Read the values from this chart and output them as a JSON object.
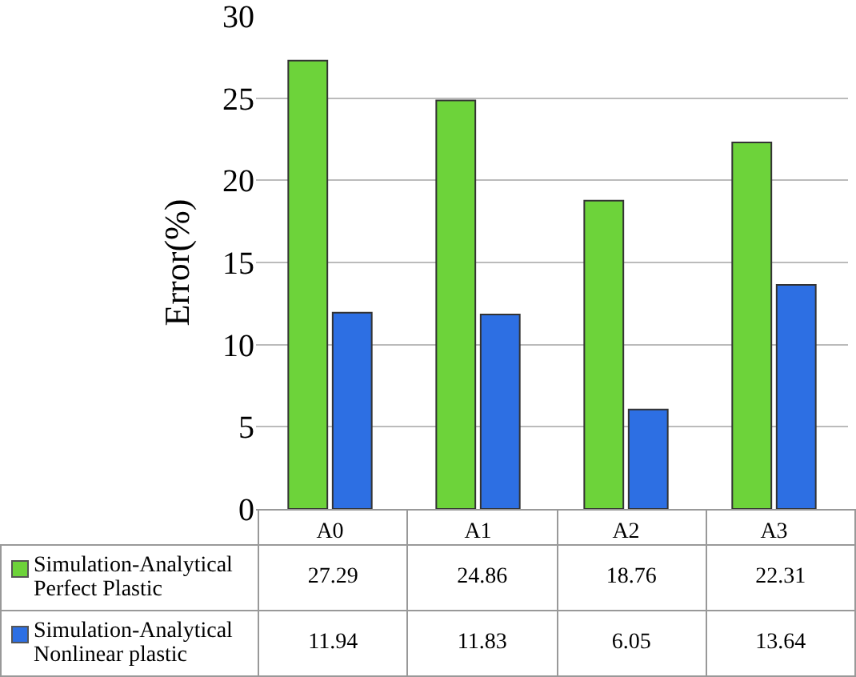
{
  "chart_data": {
    "type": "bar",
    "ylabel": "Error(%)",
    "categories": [
      "A0",
      "A1",
      "A2",
      "A3"
    ],
    "series": [
      {
        "name": "Simulation-Analytical Perfect Plastic",
        "color": "#6dd33a",
        "values": [
          27.29,
          24.86,
          18.76,
          22.31
        ]
      },
      {
        "name": "Simulation-Analytical Nonlinear plastic",
        "color": "#2d6fe3",
        "values": [
          11.94,
          11.83,
          6.05,
          13.64
        ]
      }
    ],
    "ylim": [
      0,
      30
    ],
    "yticks": [
      0,
      5,
      10,
      15,
      20,
      25,
      30
    ],
    "grid": "y",
    "data_labels": true,
    "legend": "bottom"
  }
}
